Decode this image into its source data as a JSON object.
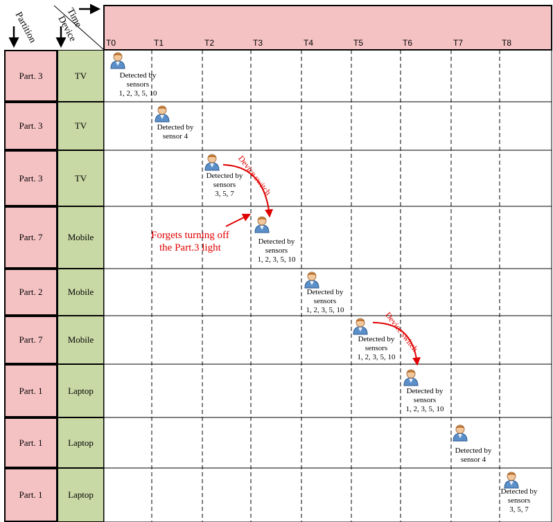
{
  "header": {
    "partition_label": "Partition",
    "time_label": "Time",
    "device_label": "Device",
    "header_color": "#f5c2c4"
  },
  "time_ticks": [
    "T0",
    "T1",
    "T2",
    "T3",
    "T4",
    "T5",
    "T6",
    "T7",
    "T8"
  ],
  "rows": [
    {
      "partition": "Part. 3",
      "device": "TV"
    },
    {
      "partition": "Part. 3",
      "device": "TV"
    },
    {
      "partition": "Part. 3",
      "device": "TV"
    },
    {
      "partition": "Part. 7",
      "device": "Mobile"
    },
    {
      "partition": "Part. 2",
      "device": "Mobile"
    },
    {
      "partition": "Part. 7",
      "device": "Mobile"
    },
    {
      "partition": "Part. 1",
      "device": "Laptop"
    },
    {
      "partition": "Part. 1",
      "device": "Laptop"
    },
    {
      "partition": "Part. 1",
      "device": "Laptop"
    }
  ],
  "detections": [
    {
      "row": 0,
      "time": 0,
      "lines": [
        "Detected by",
        "sensors",
        "1, 2, 3, 5, 10"
      ]
    },
    {
      "row": 1,
      "time": 1,
      "lines": [
        "Detected by",
        "sensor 4"
      ]
    },
    {
      "row": 2,
      "time": 2,
      "lines": [
        "Detected by",
        "sensors",
        "3, 5, 7"
      ]
    },
    {
      "row": 3,
      "time": 3,
      "lines": [
        "Detected by",
        "sensors",
        "1, 2, 3, 5, 10"
      ]
    },
    {
      "row": 4,
      "time": 4,
      "lines": [
        "Detected by",
        "sensors",
        "1, 2, 3, 5, 10"
      ]
    },
    {
      "row": 5,
      "time": 5,
      "lines": [
        "Detected by",
        "sensors",
        "1, 2, 3, 5, 10"
      ]
    },
    {
      "row": 6,
      "time": 6,
      "lines": [
        "Detected by",
        "sensors",
        "1, 2, 3, 5, 10"
      ]
    },
    {
      "row": 7,
      "time": 7,
      "lines": [
        "Detected by",
        "sensor 4"
      ]
    },
    {
      "row": 8,
      "time": 8,
      "lines": [
        "Detected by",
        "sensors",
        "3, 5, 7"
      ]
    }
  ],
  "annotations": {
    "device_switch_1": "Device switch",
    "device_switch_2": "Device switch",
    "forgot_note_line1": "Forgets turning off",
    "forgot_note_line2": "the Part.3 light",
    "accent_color": "#e00000"
  },
  "colors": {
    "partition_fill": "#f5c2c4",
    "device_fill": "#c9d9a5"
  }
}
